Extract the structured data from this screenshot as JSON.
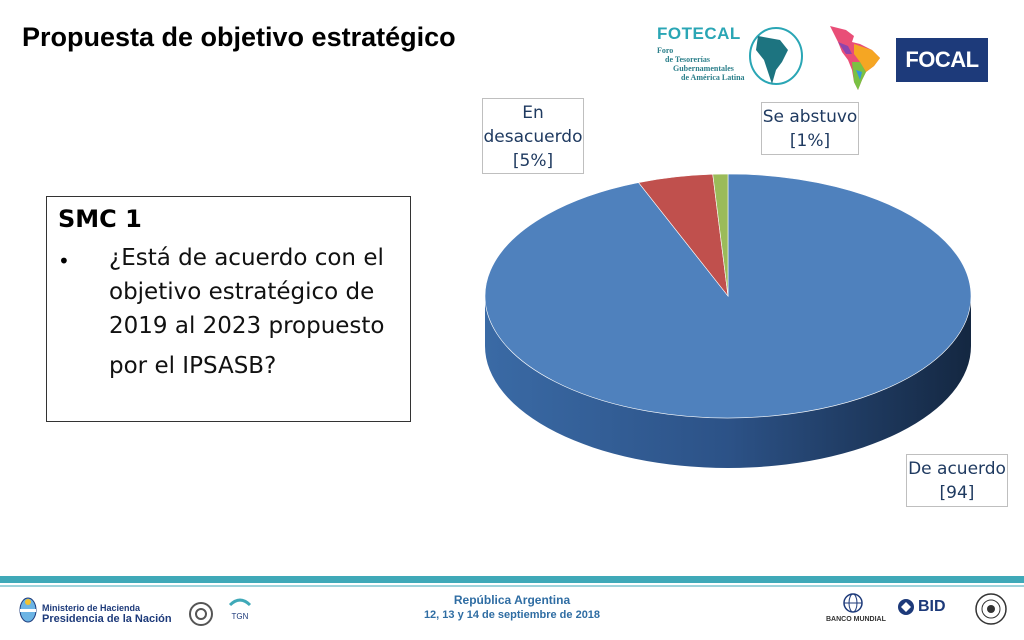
{
  "slide": {
    "title": "Propuesta de objetivo estratégico"
  },
  "logos": {
    "fotecal": {
      "brand": "FOTECAL",
      "line1": "Foro",
      "line2": "de Tesorerías",
      "line3": "Gubernamentales",
      "line4": "de América Latina"
    },
    "focal": "FOCAL"
  },
  "question": {
    "heading": "SMC 1",
    "bullet": "•",
    "line1": "¿Está de acuerdo con el",
    "line2": "objetivo estratégico de",
    "line3": "2019 al 2023 propuesto",
    "line4": "por el IPSASB?"
  },
  "chart_data": {
    "type": "pie",
    "slices": [
      {
        "label": "De acuerdo",
        "value_label": "[94]",
        "value": 94,
        "color": "#4f81bd"
      },
      {
        "label": "En desacuerdo",
        "value_label": "[5%]",
        "value": 5,
        "color": "#c0504d"
      },
      {
        "label": "Se abstuvo",
        "value_label": "[1%]",
        "value": 1,
        "color": "#9bbb59"
      }
    ],
    "label_lines": {
      "des": [
        "En",
        "desacuerdo",
        "[5%]"
      ],
      "abs": [
        "Se abstuvo",
        "[1%]"
      ],
      "acu": [
        "De acuerdo",
        "[94]"
      ]
    }
  },
  "footer": {
    "ministry_line1": "Ministerio de Hacienda",
    "ministry_line2": "Presidencia de la Nación",
    "country": "República Argentina",
    "dates": "12, 13 y 14 de septiembre de 2018",
    "tgn": "TGN",
    "banco_mundial": "BANCO MUNDIAL",
    "bid": "BID"
  },
  "colors": {
    "accent": "#3fa9b8",
    "title_text": "#000000",
    "label_text": "#1f3a60"
  }
}
